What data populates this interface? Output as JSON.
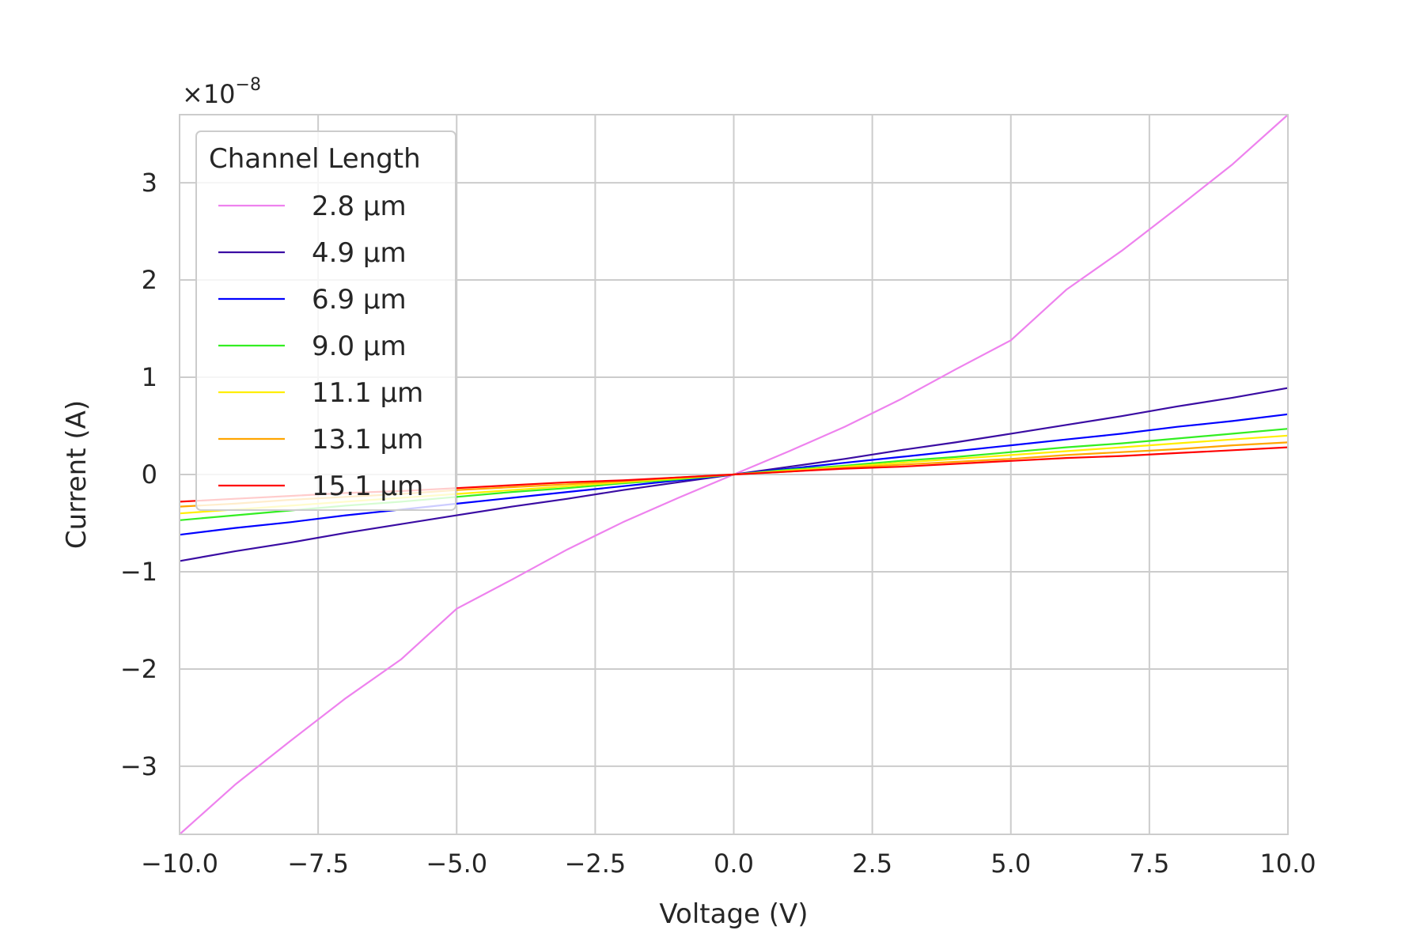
{
  "chart_data": {
    "type": "line",
    "xlabel": "Voltage (V)",
    "ylabel": "Current (A)",
    "offset_text": {
      "base": "×10",
      "exponent": "−8"
    },
    "xlim": [
      -10,
      10
    ],
    "ylim": [
      -3.7,
      3.7
    ],
    "xticks": [
      -10,
      -7.5,
      -5,
      -2.5,
      0,
      2.5,
      5,
      7.5,
      10
    ],
    "xtick_labels": [
      "−10.0",
      "−7.5",
      "−5.0",
      "−2.5",
      "0.0",
      "2.5",
      "5.0",
      "7.5",
      "10.0"
    ],
    "yticks": [
      -3,
      -2,
      -1,
      0,
      1,
      2,
      3
    ],
    "ytick_labels": [
      "−3",
      "−2",
      "−1",
      "0",
      "1",
      "2",
      "3"
    ],
    "grid": true,
    "legend": {
      "title": "Channel Length",
      "position": "upper-left"
    },
    "x": [
      -10,
      -9,
      -8,
      -7,
      -6,
      -5,
      -4,
      -3,
      -2,
      -1,
      0,
      1,
      2,
      3,
      4,
      5,
      6,
      7,
      8,
      9,
      10
    ],
    "series": [
      {
        "name": "2.8 µm",
        "color": "#ee82ee",
        "values": [
          -3.7,
          -3.19,
          -2.74,
          -2.3,
          -1.9,
          -1.38,
          -1.08,
          -0.77,
          -0.49,
          -0.24,
          0,
          0.24,
          0.49,
          0.77,
          1.08,
          1.38,
          1.9,
          2.3,
          2.74,
          3.19,
          3.7
        ]
      },
      {
        "name": "4.9 µm",
        "color": "#3a0ca3",
        "values": [
          -0.89,
          -0.79,
          -0.7,
          -0.6,
          -0.51,
          -0.42,
          -0.33,
          -0.25,
          -0.16,
          -0.08,
          0,
          0.08,
          0.16,
          0.25,
          0.33,
          0.42,
          0.51,
          0.6,
          0.7,
          0.79,
          0.89
        ]
      },
      {
        "name": "6.9 µm",
        "color": "#0000ff",
        "values": [
          -0.62,
          -0.55,
          -0.49,
          -0.42,
          -0.36,
          -0.3,
          -0.24,
          -0.18,
          -0.12,
          -0.06,
          0,
          0.06,
          0.12,
          0.18,
          0.24,
          0.3,
          0.36,
          0.42,
          0.49,
          0.55,
          0.62
        ]
      },
      {
        "name": "9.0 µm",
        "color": "#33ee22",
        "values": [
          -0.47,
          -0.42,
          -0.37,
          -0.32,
          -0.28,
          -0.23,
          -0.18,
          -0.14,
          -0.09,
          -0.05,
          0,
          0.05,
          0.09,
          0.14,
          0.18,
          0.23,
          0.28,
          0.32,
          0.37,
          0.42,
          0.47
        ]
      },
      {
        "name": "11.1 µm",
        "color": "#ffee00",
        "values": [
          -0.4,
          -0.36,
          -0.32,
          -0.28,
          -0.24,
          -0.2,
          -0.16,
          -0.12,
          -0.08,
          -0.04,
          0,
          0.04,
          0.08,
          0.12,
          0.16,
          0.2,
          0.24,
          0.28,
          0.32,
          0.36,
          0.4
        ]
      },
      {
        "name": "13.1 µm",
        "color": "#ffa500",
        "values": [
          -0.33,
          -0.3,
          -0.26,
          -0.23,
          -0.2,
          -0.16,
          -0.13,
          -0.1,
          -0.07,
          -0.03,
          0,
          0.03,
          0.07,
          0.1,
          0.13,
          0.16,
          0.2,
          0.23,
          0.26,
          0.3,
          0.33
        ]
      },
      {
        "name": "15.1 µm",
        "color": "#ff0000",
        "values": [
          -0.28,
          -0.25,
          -0.22,
          -0.19,
          -0.17,
          -0.14,
          -0.11,
          -0.08,
          -0.06,
          -0.03,
          0,
          0.03,
          0.06,
          0.08,
          0.11,
          0.14,
          0.17,
          0.19,
          0.22,
          0.25,
          0.28
        ]
      }
    ]
  }
}
